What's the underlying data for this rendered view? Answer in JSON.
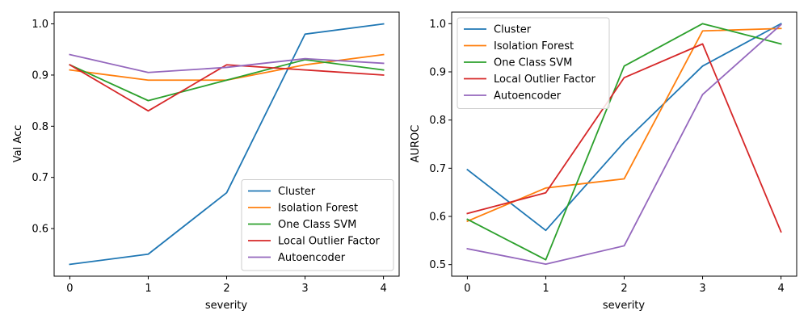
{
  "chart_data": [
    {
      "type": "line",
      "xlabel": "severity",
      "ylabel": "Val Acc",
      "x": [
        0,
        1,
        2,
        3,
        4
      ],
      "xticks": [
        "0",
        "1",
        "2",
        "3",
        "4"
      ],
      "yticks": [
        "0.6",
        "0.7",
        "0.8",
        "0.9",
        "1.0"
      ],
      "ytick_values": [
        0.6,
        0.7,
        0.8,
        0.9,
        1.0
      ],
      "xlim": [
        -0.2,
        4.2
      ],
      "ylim": [
        0.507,
        1.023
      ],
      "legend_position": "lower-right",
      "grid": false,
      "series": [
        {
          "name": "Cluster",
          "color": "#1f77b4",
          "values": [
            0.53,
            0.55,
            0.67,
            0.98,
            1.0
          ]
        },
        {
          "name": "Isolation Forest",
          "color": "#ff7f0e",
          "values": [
            0.91,
            0.89,
            0.89,
            0.92,
            0.94
          ]
        },
        {
          "name": "One Class SVM",
          "color": "#2ca02c",
          "values": [
            0.92,
            0.85,
            0.89,
            0.93,
            0.91
          ]
        },
        {
          "name": "Local Outlier Factor",
          "color": "#d62728",
          "values": [
            0.92,
            0.83,
            0.92,
            0.91,
            0.9
          ]
        },
        {
          "name": "Autoencoder",
          "color": "#9467bd",
          "values": [
            0.94,
            0.905,
            0.915,
            0.932,
            0.923
          ]
        }
      ]
    },
    {
      "type": "line",
      "xlabel": "severity",
      "ylabel": "AUROC",
      "x": [
        0,
        1,
        2,
        3,
        4
      ],
      "xticks": [
        "0",
        "1",
        "2",
        "3",
        "4"
      ],
      "yticks": [
        "0.5",
        "0.6",
        "0.7",
        "0.8",
        "0.9",
        "1.0"
      ],
      "ytick_values": [
        0.5,
        0.6,
        0.7,
        0.8,
        0.9,
        1.0
      ],
      "xlim": [
        -0.2,
        4.2
      ],
      "ylim": [
        0.476,
        1.024
      ],
      "legend_position": "upper-left",
      "grid": false,
      "series": [
        {
          "name": "Cluster",
          "color": "#1f77b4",
          "values": [
            0.697,
            0.571,
            0.754,
            0.912,
            1.0
          ]
        },
        {
          "name": "Isolation Forest",
          "color": "#ff7f0e",
          "values": [
            0.59,
            0.659,
            0.678,
            0.985,
            0.99
          ]
        },
        {
          "name": "One Class SVM",
          "color": "#2ca02c",
          "values": [
            0.594,
            0.51,
            0.912,
            1.0,
            0.958
          ]
        },
        {
          "name": "Local Outlier Factor",
          "color": "#d62728",
          "values": [
            0.606,
            0.649,
            0.888,
            0.958,
            0.568
          ]
        },
        {
          "name": "Autoencoder",
          "color": "#9467bd",
          "values": [
            0.533,
            0.501,
            0.539,
            0.853,
            0.998
          ]
        }
      ]
    }
  ]
}
